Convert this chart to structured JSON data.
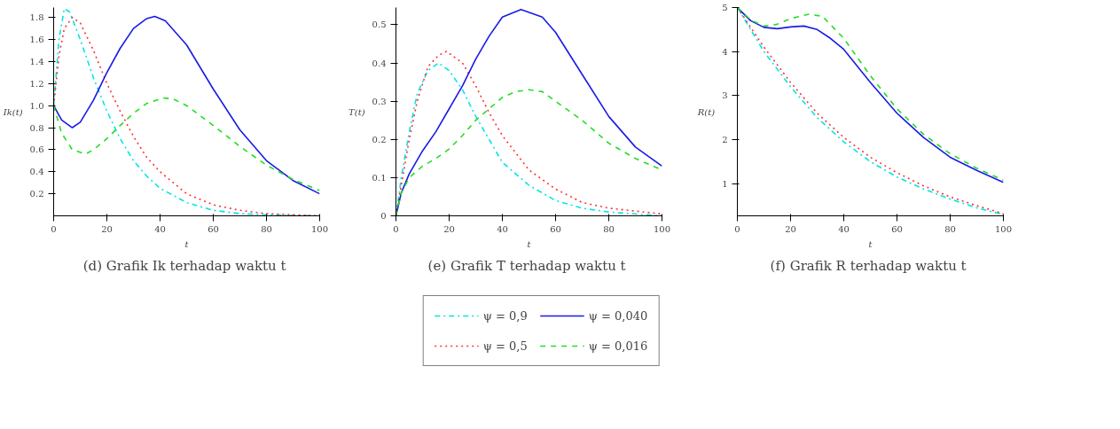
{
  "chart_data": [
    {
      "type": "line",
      "title": "(d)  Grafik Ik terhadap waktu t",
      "xlabel": "t",
      "ylabel": "Ik(t)",
      "xlim": [
        0,
        100
      ],
      "ylim": [
        0,
        1.89
      ],
      "xticks": [
        0,
        20,
        40,
        60,
        80,
        100
      ],
      "yticks": [
        0.2,
        0.4,
        0.6,
        0.8,
        {
          "value": 1.0,
          "label": "1.0"
        },
        1.2,
        1.4,
        1.6,
        1.8
      ],
      "grid": false,
      "series": [
        {
          "color": "#00e5e5",
          "line_style": "dashdot",
          "x": [
            0,
            2,
            4,
            6,
            10,
            15,
            20,
            25,
            30,
            35,
            40,
            50,
            60,
            70,
            80,
            100
          ],
          "values": [
            1.0,
            1.6,
            1.88,
            1.85,
            1.6,
            1.25,
            0.95,
            0.7,
            0.5,
            0.36,
            0.25,
            0.12,
            0.05,
            0.02,
            0.01,
            0.0
          ]
        },
        {
          "color": "#ff3030",
          "line_style": "dotted",
          "x": [
            0,
            2,
            4,
            7,
            10,
            15,
            20,
            25,
            30,
            35,
            40,
            50,
            60,
            70,
            80,
            100
          ],
          "values": [
            1.0,
            1.45,
            1.7,
            1.8,
            1.75,
            1.5,
            1.2,
            0.95,
            0.72,
            0.53,
            0.4,
            0.2,
            0.1,
            0.05,
            0.02,
            0.0
          ]
        },
        {
          "color": "#1a1ae6",
          "line_style": "solid",
          "x": [
            0,
            3,
            7,
            10,
            15,
            20,
            25,
            30,
            35,
            38,
            42,
            50,
            60,
            70,
            80,
            90,
            100
          ],
          "values": [
            1.0,
            0.87,
            0.8,
            0.85,
            1.05,
            1.3,
            1.52,
            1.7,
            1.79,
            1.81,
            1.77,
            1.55,
            1.15,
            0.78,
            0.5,
            0.32,
            0.2
          ]
        },
        {
          "color": "#22dd22",
          "line_style": "dashed",
          "x": [
            0,
            3,
            7,
            12,
            15,
            20,
            25,
            30,
            35,
            41,
            45,
            50,
            60,
            70,
            80,
            90,
            100
          ],
          "values": [
            1.0,
            0.75,
            0.6,
            0.56,
            0.6,
            0.7,
            0.82,
            0.93,
            1.02,
            1.07,
            1.06,
            1.0,
            0.82,
            0.63,
            0.46,
            0.33,
            0.23
          ]
        }
      ]
    },
    {
      "type": "line",
      "title": "(e)  Grafik T terhadap waktu t",
      "xlabel": "t",
      "ylabel": "T(t)",
      "xlim": [
        0,
        100
      ],
      "ylim": [
        0,
        0.545
      ],
      "xticks": [
        0,
        20,
        40,
        60,
        80,
        100
      ],
      "yticks": [
        0,
        0.1,
        0.2,
        0.3,
        0.4,
        0.5
      ],
      "grid": false,
      "legend": "bottom",
      "series": [
        {
          "name": "ψ = 0,9",
          "color": "#00e5e5",
          "line_style": "dashdot",
          "x": [
            0,
            2,
            5,
            8,
            12,
            16,
            20,
            25,
            30,
            40,
            50,
            60,
            70,
            80,
            100
          ],
          "values": [
            0,
            0.1,
            0.22,
            0.32,
            0.38,
            0.4,
            0.38,
            0.33,
            0.26,
            0.14,
            0.08,
            0.04,
            0.02,
            0.01,
            0.0
          ]
        },
        {
          "name": "ψ = 0,5",
          "color": "#ff3030",
          "line_style": "dotted",
          "x": [
            0,
            2,
            5,
            8,
            12,
            16,
            19,
            25,
            30,
            35,
            40,
            50,
            60,
            70,
            80,
            100
          ],
          "values": [
            0,
            0.08,
            0.2,
            0.3,
            0.39,
            0.42,
            0.43,
            0.4,
            0.34,
            0.27,
            0.21,
            0.12,
            0.07,
            0.035,
            0.02,
            0.005
          ]
        },
        {
          "name": "ψ = 0,040",
          "color": "#1a1ae6",
          "line_style": "solid",
          "x": [
            0,
            2,
            5,
            10,
            15,
            20,
            25,
            30,
            35,
            40,
            47,
            55,
            60,
            70,
            80,
            90,
            100
          ],
          "values": [
            0,
            0.06,
            0.11,
            0.17,
            0.22,
            0.28,
            0.34,
            0.41,
            0.47,
            0.52,
            0.54,
            0.52,
            0.48,
            0.37,
            0.26,
            0.18,
            0.13
          ]
        },
        {
          "name": "ψ = 0,016",
          "color": "#22dd22",
          "line_style": "dashed",
          "x": [
            0,
            2,
            5,
            10,
            15,
            20,
            25,
            30,
            35,
            40,
            45,
            50,
            55,
            60,
            70,
            80,
            90,
            100
          ],
          "values": [
            0,
            0.06,
            0.1,
            0.13,
            0.15,
            0.175,
            0.21,
            0.25,
            0.28,
            0.31,
            0.325,
            0.33,
            0.325,
            0.3,
            0.25,
            0.19,
            0.15,
            0.12
          ]
        }
      ]
    },
    {
      "type": "line",
      "title": "(f)  Grafik R terhadap waktu t",
      "xlabel": "t",
      "ylabel": "R(t)",
      "xlim": [
        0,
        100
      ],
      "ylim": [
        0.27,
        5
      ],
      "xticks": [
        0,
        20,
        40,
        60,
        80,
        100
      ],
      "yticks": [
        1,
        2,
        3,
        4,
        5
      ],
      "grid": false,
      "series": [
        {
          "color": "#00e5e5",
          "line_style": "dashdot",
          "x": [
            0,
            5,
            10,
            15,
            20,
            30,
            40,
            50,
            60,
            70,
            80,
            90,
            100
          ],
          "values": [
            5,
            4.5,
            4.0,
            3.6,
            3.2,
            2.5,
            1.95,
            1.5,
            1.15,
            0.88,
            0.65,
            0.45,
            0.3
          ]
        },
        {
          "color": "#ff3030",
          "line_style": "dotted",
          "x": [
            0,
            5,
            10,
            15,
            20,
            30,
            40,
            50,
            60,
            70,
            80,
            90,
            100
          ],
          "values": [
            5,
            4.55,
            4.1,
            3.7,
            3.3,
            2.6,
            2.05,
            1.6,
            1.25,
            0.95,
            0.7,
            0.5,
            0.32
          ]
        },
        {
          "color": "#1a1ae6",
          "line_style": "solid",
          "x": [
            0,
            5,
            10,
            15,
            20,
            25,
            30,
            35,
            40,
            50,
            60,
            70,
            80,
            90,
            100
          ],
          "values": [
            5,
            4.7,
            4.55,
            4.52,
            4.56,
            4.58,
            4.5,
            4.3,
            4.05,
            3.3,
            2.6,
            2.05,
            1.6,
            1.3,
            1.03
          ]
        },
        {
          "color": "#22dd22",
          "line_style": "dashed",
          "x": [
            0,
            5,
            10,
            15,
            20,
            27,
            32,
            40,
            50,
            60,
            70,
            80,
            90,
            100
          ],
          "values": [
            5,
            4.72,
            4.58,
            4.62,
            4.75,
            4.85,
            4.8,
            4.3,
            3.45,
            2.7,
            2.12,
            1.68,
            1.35,
            1.08
          ]
        }
      ]
    }
  ]
}
